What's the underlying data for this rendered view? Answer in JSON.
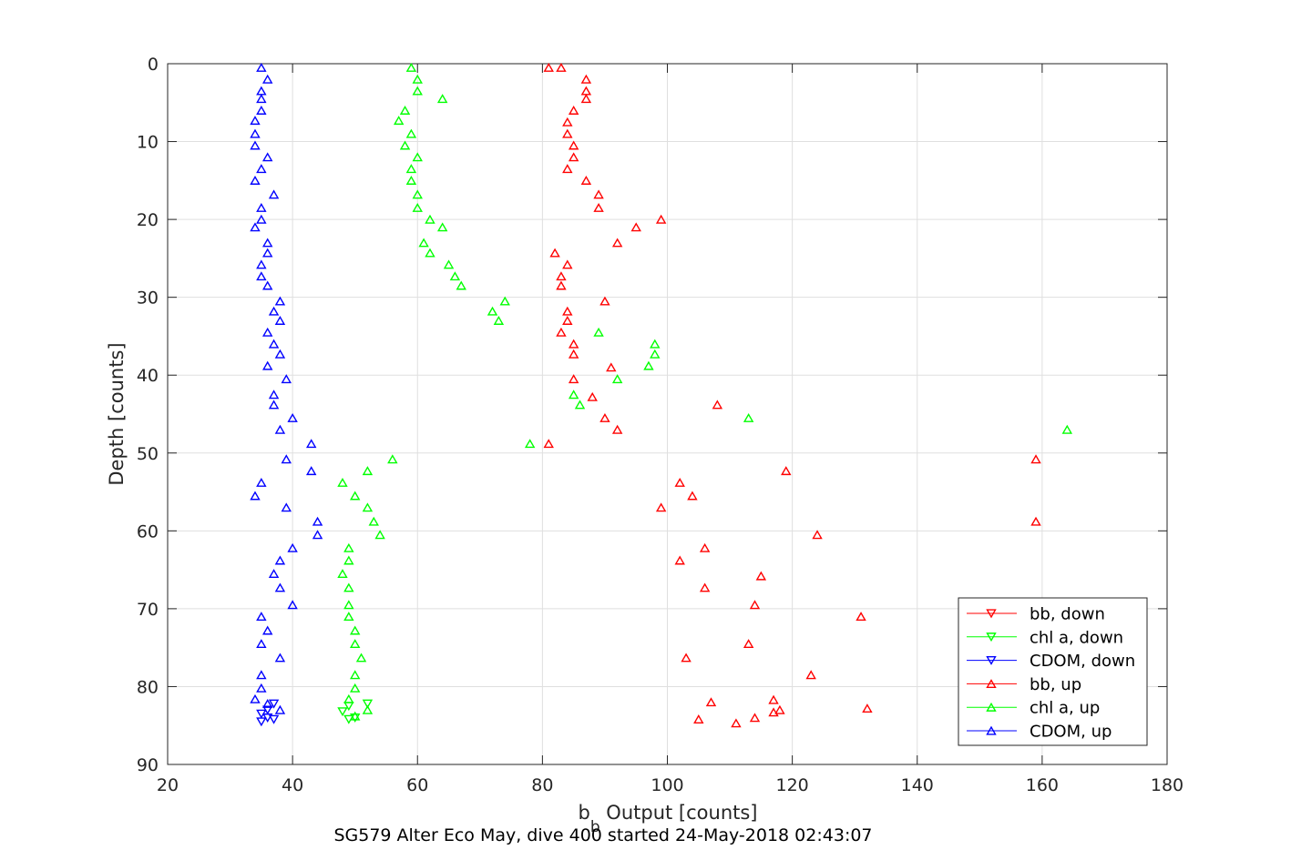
{
  "chart_data": {
    "type": "scatter",
    "title": "SG579 Alter Eco May, dive 400 started 24-May-2018 02:43:07",
    "xlabel": {
      "main": "b",
      "sub": "b",
      "rest": " Output [counts]"
    },
    "ylabel": "Depth [counts]",
    "xlim": [
      20,
      180
    ],
    "ylim": [
      0,
      90
    ],
    "y_reversed": true,
    "x_ticks": [
      20,
      40,
      60,
      80,
      100,
      120,
      140,
      160,
      180
    ],
    "y_ticks": [
      0,
      10,
      20,
      30,
      40,
      50,
      60,
      70,
      80,
      90
    ],
    "grid": true,
    "legend_position": "bottom-right",
    "series": [
      {
        "name": "bb, down",
        "color": "#ff0000",
        "marker": "triangle-down",
        "points": []
      },
      {
        "name": "chl a, down",
        "color": "#00ff00",
        "marker": "triangle-down",
        "points": [
          [
            49,
            82.5
          ],
          [
            48,
            83.2
          ],
          [
            49,
            84.2
          ],
          [
            50,
            84.0
          ],
          [
            52,
            82.2
          ]
        ]
      },
      {
        "name": "CDOM, down",
        "color": "#0000ff",
        "marker": "triangle-down",
        "points": [
          [
            37,
            82.2
          ],
          [
            36,
            83.0
          ],
          [
            35,
            83.5
          ],
          [
            36,
            84.0
          ],
          [
            37,
            84.2
          ],
          [
            35,
            84.5
          ]
        ]
      },
      {
        "name": "bb, up",
        "color": "#ff0000",
        "marker": "triangle-up",
        "points": [
          [
            81,
            0.5
          ],
          [
            83,
            0.5
          ],
          [
            87,
            2.0
          ],
          [
            87,
            3.5
          ],
          [
            87,
            4.5
          ],
          [
            85,
            6.0
          ],
          [
            84,
            7.5
          ],
          [
            84,
            9.0
          ],
          [
            85,
            10.5
          ],
          [
            85,
            12.0
          ],
          [
            84,
            13.5
          ],
          [
            87,
            15.0
          ],
          [
            89,
            16.8
          ],
          [
            89,
            18.5
          ],
          [
            99,
            20.0
          ],
          [
            95,
            21.0
          ],
          [
            92,
            23.0
          ],
          [
            82,
            24.3
          ],
          [
            84,
            25.8
          ],
          [
            83,
            27.3
          ],
          [
            83,
            28.5
          ],
          [
            90,
            30.5
          ],
          [
            84,
            31.8
          ],
          [
            84,
            33.0
          ],
          [
            83,
            34.5
          ],
          [
            85,
            36.0
          ],
          [
            85,
            37.3
          ],
          [
            91,
            39.0
          ],
          [
            85,
            40.5
          ],
          [
            88,
            42.8
          ],
          [
            108,
            43.8
          ],
          [
            90,
            45.5
          ],
          [
            92,
            47.0
          ],
          [
            81,
            48.8
          ],
          [
            159,
            50.8
          ],
          [
            119,
            52.3
          ],
          [
            102,
            53.8
          ],
          [
            104,
            55.5
          ],
          [
            99,
            57.0
          ],
          [
            159,
            58.8
          ],
          [
            124,
            60.5
          ],
          [
            106,
            62.2
          ],
          [
            102,
            63.8
          ],
          [
            115,
            65.8
          ],
          [
            106,
            67.3
          ],
          [
            114,
            69.5
          ],
          [
            131,
            71.0
          ],
          [
            113,
            74.5
          ],
          [
            103,
            76.3
          ],
          [
            123,
            78.5
          ],
          [
            107,
            82.0
          ],
          [
            117,
            81.7
          ],
          [
            118,
            83.0
          ],
          [
            117,
            83.3
          ],
          [
            132,
            82.8
          ],
          [
            105,
            84.2
          ],
          [
            114,
            84.0
          ],
          [
            111,
            84.7
          ]
        ]
      },
      {
        "name": "chl a, up",
        "color": "#00ff00",
        "marker": "triangle-up",
        "points": [
          [
            59,
            0.5
          ],
          [
            60,
            2.0
          ],
          [
            60,
            3.5
          ],
          [
            64,
            4.5
          ],
          [
            58,
            6.0
          ],
          [
            57,
            7.3
          ],
          [
            59,
            9.0
          ],
          [
            58,
            10.5
          ],
          [
            60,
            12.0
          ],
          [
            59,
            13.5
          ],
          [
            59,
            15.0
          ],
          [
            60,
            16.8
          ],
          [
            60,
            18.5
          ],
          [
            62,
            20.0
          ],
          [
            64,
            21.0
          ],
          [
            61,
            23.0
          ],
          [
            62,
            24.3
          ],
          [
            65,
            25.8
          ],
          [
            66,
            27.3
          ],
          [
            67,
            28.5
          ],
          [
            74,
            30.5
          ],
          [
            72,
            31.8
          ],
          [
            73,
            33.0
          ],
          [
            89,
            34.5
          ],
          [
            98,
            36.0
          ],
          [
            98,
            37.3
          ],
          [
            97,
            38.8
          ],
          [
            92,
            40.5
          ],
          [
            85,
            42.5
          ],
          [
            86,
            43.8
          ],
          [
            113,
            45.5
          ],
          [
            164,
            47.0
          ],
          [
            78,
            48.8
          ],
          [
            56,
            50.8
          ],
          [
            52,
            52.3
          ],
          [
            48,
            53.8
          ],
          [
            50,
            55.5
          ],
          [
            52,
            57.0
          ],
          [
            53,
            58.8
          ],
          [
            54,
            60.5
          ],
          [
            49,
            62.2
          ],
          [
            49,
            63.8
          ],
          [
            48,
            65.5
          ],
          [
            49,
            67.3
          ],
          [
            49,
            69.5
          ],
          [
            49,
            71.0
          ],
          [
            50,
            72.8
          ],
          [
            50,
            74.5
          ],
          [
            51,
            76.3
          ],
          [
            50,
            78.5
          ],
          [
            50,
            80.2
          ],
          [
            49,
            81.6
          ],
          [
            52,
            83.0
          ],
          [
            50,
            83.8
          ]
        ]
      },
      {
        "name": "CDOM, up",
        "color": "#0000ff",
        "marker": "triangle-up",
        "points": [
          [
            35,
            0.5
          ],
          [
            36,
            2.0
          ],
          [
            35,
            3.5
          ],
          [
            35,
            4.5
          ],
          [
            35,
            6.0
          ],
          [
            34,
            7.3
          ],
          [
            34,
            9.0
          ],
          [
            34,
            10.5
          ],
          [
            36,
            12.0
          ],
          [
            35,
            13.5
          ],
          [
            34,
            15.0
          ],
          [
            37,
            16.8
          ],
          [
            35,
            18.5
          ],
          [
            35,
            20.0
          ],
          [
            34,
            21.0
          ],
          [
            36,
            23.0
          ],
          [
            36,
            24.3
          ],
          [
            35,
            25.8
          ],
          [
            35,
            27.3
          ],
          [
            36,
            28.5
          ],
          [
            38,
            30.5
          ],
          [
            37,
            31.8
          ],
          [
            38,
            33.0
          ],
          [
            36,
            34.5
          ],
          [
            37,
            36.0
          ],
          [
            38,
            37.3
          ],
          [
            36,
            38.8
          ],
          [
            39,
            40.5
          ],
          [
            37,
            42.5
          ],
          [
            37,
            43.8
          ],
          [
            40,
            45.5
          ],
          [
            38,
            47.0
          ],
          [
            43,
            48.8
          ],
          [
            39,
            50.8
          ],
          [
            43,
            52.3
          ],
          [
            35,
            53.8
          ],
          [
            34,
            55.5
          ],
          [
            39,
            57.0
          ],
          [
            44,
            58.8
          ],
          [
            44,
            60.5
          ],
          [
            40,
            62.2
          ],
          [
            38,
            63.8
          ],
          [
            37,
            65.5
          ],
          [
            38,
            67.3
          ],
          [
            40,
            69.5
          ],
          [
            35,
            71.0
          ],
          [
            36,
            72.8
          ],
          [
            35,
            74.5
          ],
          [
            38,
            76.3
          ],
          [
            35,
            78.5
          ],
          [
            35,
            80.2
          ],
          [
            34,
            81.6
          ],
          [
            36,
            82.2
          ],
          [
            38,
            83.0
          ]
        ]
      }
    ]
  }
}
